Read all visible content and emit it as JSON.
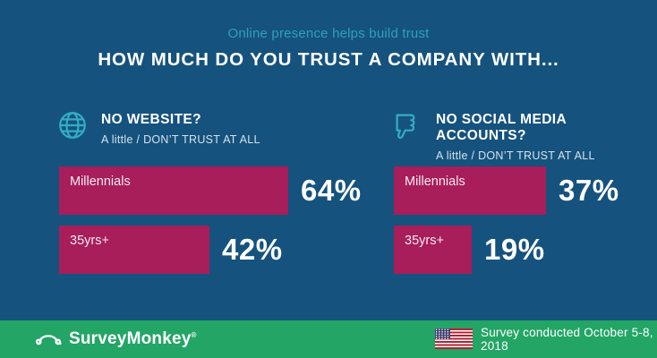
{
  "page": {
    "subtitle": "Online presence helps build trust",
    "title": "HOW MUCH DO YOU TRUST A COMPANY WITH..."
  },
  "colors": {
    "background": "#15527E",
    "bar": "#A71E5A",
    "teal_subtitle": "#2FA0BD",
    "teal_icon": "#33AEC6",
    "footer_green": "#23A566",
    "text_white": "#FFFFFF",
    "sub_label": "#D6E2EC"
  },
  "chart_data": [
    {
      "type": "bar",
      "orientation": "horizontal",
      "title": "NO WEBSITE?",
      "subtitle": "A little / DON’T TRUST AT ALL",
      "icon": "globe-icon",
      "categories": [
        "Millennials",
        "35yrs+"
      ],
      "values": [
        64,
        42
      ],
      "value_labels": [
        "64%",
        "42%"
      ],
      "unit": "%",
      "bar_color": "#A71E5A"
    },
    {
      "type": "bar",
      "orientation": "horizontal",
      "title": "NO SOCIAL MEDIA ACCOUNTS?",
      "subtitle": "A little / DON’T TRUST AT ALL",
      "icon": "thumbs-down-icon",
      "categories": [
        "Millennials",
        "35yrs+"
      ],
      "values": [
        37,
        19
      ],
      "value_labels": [
        "37%",
        "19%"
      ],
      "unit": "%",
      "bar_color": "#A71E5A"
    }
  ],
  "footer": {
    "brand": "SurveyMonkey",
    "brand_reg": "®",
    "flag": "us-flag-icon",
    "note": "Survey conducted October 5-8, 2018"
  }
}
